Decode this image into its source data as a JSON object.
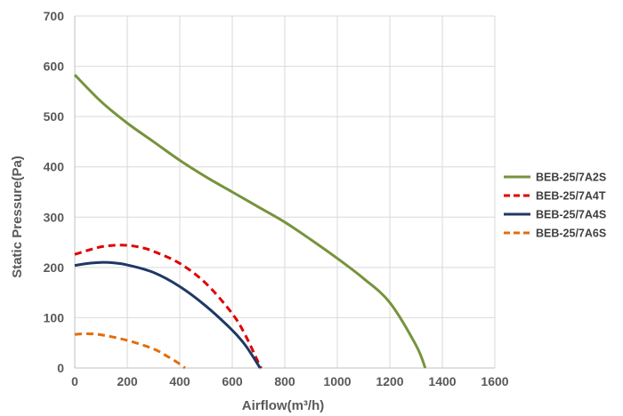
{
  "chart_data": {
    "type": "line",
    "xlabel": "Airflow(m³/h)",
    "ylabel": "Static Pressure(Pa)",
    "xlim": [
      0,
      1600
    ],
    "ylim": [
      0,
      700
    ],
    "xticks": [
      "0",
      "200",
      "400",
      "600",
      "800",
      "1000",
      "1200",
      "1400",
      "1600"
    ],
    "yticks": [
      "0",
      "100",
      "200",
      "300",
      "400",
      "500",
      "600",
      "700"
    ],
    "grid": true,
    "legend_position": "right",
    "series": [
      {
        "name": "BEB-25/7A2S",
        "color": "#77933C",
        "dash": "solid",
        "points": [
          [
            0,
            583
          ],
          [
            100,
            530
          ],
          [
            200,
            487
          ],
          [
            300,
            450
          ],
          [
            400,
            413
          ],
          [
            500,
            380
          ],
          [
            600,
            350
          ],
          [
            700,
            320
          ],
          [
            800,
            290
          ],
          [
            900,
            255
          ],
          [
            1000,
            218
          ],
          [
            1100,
            178
          ],
          [
            1200,
            130
          ],
          [
            1300,
            45
          ],
          [
            1335,
            0
          ]
        ]
      },
      {
        "name": "BEB-25/7A4T",
        "color": "#E00000",
        "dash": "dashed",
        "points": [
          [
            0,
            226
          ],
          [
            50,
            234
          ],
          [
            100,
            241
          ],
          [
            150,
            244
          ],
          [
            200,
            244
          ],
          [
            250,
            240
          ],
          [
            300,
            232
          ],
          [
            400,
            208
          ],
          [
            500,
            168
          ],
          [
            600,
            108
          ],
          [
            650,
            65
          ],
          [
            700,
            10
          ],
          [
            710,
            0
          ]
        ]
      },
      {
        "name": "BEB-25/7A4S",
        "color": "#1F3864",
        "dash": "solid",
        "points": [
          [
            0,
            204
          ],
          [
            50,
            208
          ],
          [
            100,
            210
          ],
          [
            150,
            209
          ],
          [
            200,
            205
          ],
          [
            300,
            190
          ],
          [
            400,
            162
          ],
          [
            500,
            123
          ],
          [
            600,
            75
          ],
          [
            650,
            45
          ],
          [
            700,
            5
          ],
          [
            705,
            0
          ]
        ]
      },
      {
        "name": "BEB-25/7A6S",
        "color": "#E46C0A",
        "dash": "dashed",
        "points": [
          [
            0,
            67
          ],
          [
            50,
            68
          ],
          [
            100,
            66
          ],
          [
            200,
            55
          ],
          [
            300,
            38
          ],
          [
            350,
            24
          ],
          [
            400,
            8
          ],
          [
            420,
            0
          ]
        ]
      }
    ]
  }
}
